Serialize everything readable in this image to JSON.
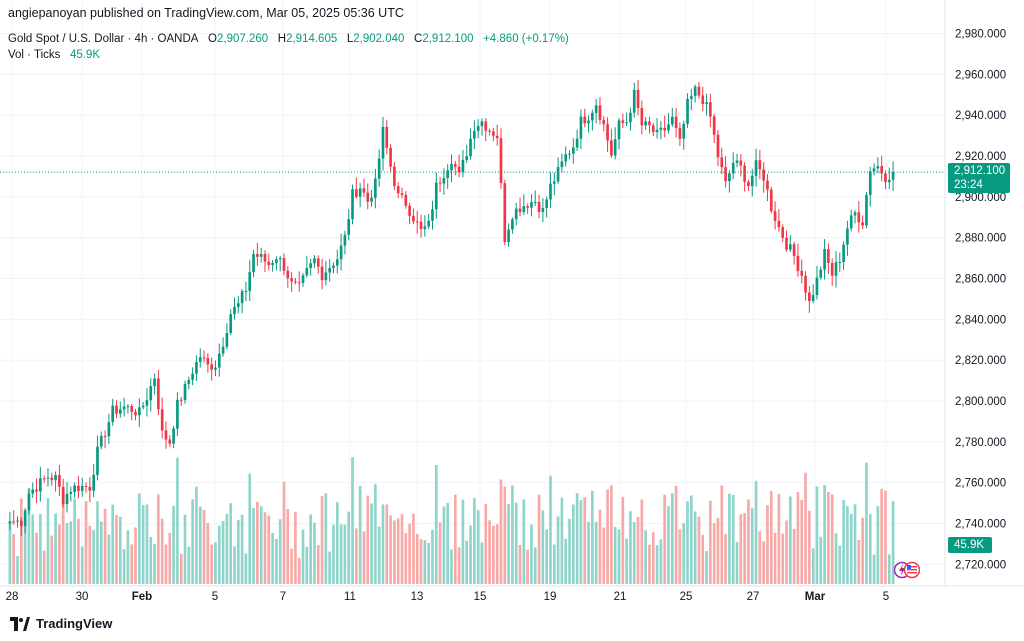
{
  "publisher_line": "angiepanoyan published on TradingView.com, Mar 05, 2025 05:36 UTC",
  "symbol": {
    "name": "Gold Spot / U.S. Dollar · 4h · OANDA",
    "open_label": "O",
    "open": "2,907.260",
    "high_label": "H",
    "high": "2,914.605",
    "low_label": "L",
    "low": "2,902.040",
    "close_label": "C",
    "close": "2,912.100",
    "change": "+4.860 (+0.17%)"
  },
  "volume": {
    "label": "Vol · Ticks",
    "value": "45.9K"
  },
  "current_price": {
    "price": "2,912.100",
    "countdown": "23:24"
  },
  "footer": {
    "brand": "TradingView"
  },
  "colors": {
    "up": "#089981",
    "down": "#f23645",
    "vol_up": "#8fd4ca",
    "vol_down": "#f7a9a7",
    "grid": "#f0f3fa",
    "text": "#131722"
  },
  "chart_data": {
    "type": "candlestick",
    "title": "Gold Spot / U.S. Dollar · 4h · OANDA",
    "ylim": [
      2712,
      2990
    ],
    "y_ticks": [
      "2,720.000",
      "2,740.000",
      "2,760.000",
      "2,780.000",
      "2,800.000",
      "2,820.000",
      "2,840.000",
      "2,860.000",
      "2,880.000",
      "2,900.000",
      "2,920.000",
      "2,940.000",
      "2,960.000",
      "2,980.000"
    ],
    "x_ticks": [
      "28",
      "30",
      "Feb",
      "5",
      "7",
      "11",
      "13",
      "15",
      "19",
      "21",
      "25",
      "27",
      "Mar",
      "5"
    ],
    "anchors": [
      [
        0,
        2741
      ],
      [
        3,
        2741
      ],
      [
        5,
        2755
      ],
      [
        10,
        2763
      ],
      [
        12,
        2762
      ],
      [
        14,
        2752
      ],
      [
        16,
        2757
      ],
      [
        18,
        2758
      ],
      [
        21,
        2758
      ],
      [
        23,
        2775
      ],
      [
        25,
        2785
      ],
      [
        27,
        2795
      ],
      [
        30,
        2797
      ],
      [
        32,
        2796
      ],
      [
        34,
        2794
      ],
      [
        36,
        2802
      ],
      [
        38,
        2812
      ],
      [
        40,
        2784
      ],
      [
        42,
        2780
      ],
      [
        44,
        2798
      ],
      [
        46,
        2806
      ],
      [
        48,
        2815
      ],
      [
        50,
        2822
      ],
      [
        52,
        2817
      ],
      [
        54,
        2818
      ],
      [
        56,
        2829
      ],
      [
        58,
        2843
      ],
      [
        60,
        2847
      ],
      [
        62,
        2855
      ],
      [
        64,
        2872
      ],
      [
        66,
        2870
      ],
      [
        68,
        2867
      ],
      [
        70,
        2871
      ],
      [
        72,
        2866
      ],
      [
        74,
        2857
      ],
      [
        76,
        2855
      ],
      [
        78,
        2863
      ],
      [
        80,
        2869
      ],
      [
        82,
        2862
      ],
      [
        84,
        2866
      ],
      [
        86,
        2870
      ],
      [
        88,
        2880
      ],
      [
        90,
        2901
      ],
      [
        92,
        2905
      ],
      [
        94,
        2898
      ],
      [
        96,
        2906
      ],
      [
        98,
        2932
      ],
      [
        100,
        2915
      ],
      [
        102,
        2900
      ],
      [
        104,
        2897
      ],
      [
        106,
        2890
      ],
      [
        108,
        2883
      ],
      [
        110,
        2886
      ],
      [
        112,
        2905
      ],
      [
        114,
        2912
      ],
      [
        116,
        2919
      ],
      [
        118,
        2910
      ],
      [
        120,
        2922
      ],
      [
        122,
        2935
      ],
      [
        124,
        2937
      ],
      [
        126,
        2933
      ],
      [
        128,
        2930
      ],
      [
        130,
        2880
      ],
      [
        132,
        2892
      ],
      [
        134,
        2895
      ],
      [
        136,
        2897
      ],
      [
        138,
        2898
      ],
      [
        140,
        2893
      ],
      [
        142,
        2905
      ],
      [
        144,
        2912
      ],
      [
        146,
        2920
      ],
      [
        148,
        2925
      ],
      [
        150,
        2937
      ],
      [
        152,
        2940
      ],
      [
        154,
        2946
      ],
      [
        156,
        2935
      ],
      [
        158,
        2921
      ],
      [
        160,
        2935
      ],
      [
        162,
        2937
      ],
      [
        164,
        2950
      ],
      [
        166,
        2935
      ],
      [
        168,
        2934
      ],
      [
        170,
        2930
      ],
      [
        172,
        2933
      ],
      [
        174,
        2938
      ],
      [
        176,
        2926
      ],
      [
        178,
        2945
      ],
      [
        180,
        2952
      ],
      [
        182,
        2948
      ],
      [
        184,
        2939
      ],
      [
        186,
        2920
      ],
      [
        188,
        2906
      ],
      [
        190,
        2917
      ],
      [
        192,
        2914
      ],
      [
        194,
        2906
      ],
      [
        196,
        2915
      ],
      [
        198,
        2910
      ],
      [
        200,
        2895
      ],
      [
        202,
        2885
      ],
      [
        204,
        2877
      ],
      [
        206,
        2871
      ],
      [
        208,
        2862
      ],
      [
        210,
        2848
      ],
      [
        212,
        2859
      ],
      [
        214,
        2872
      ],
      [
        216,
        2862
      ],
      [
        218,
        2870
      ],
      [
        220,
        2885
      ],
      [
        222,
        2892
      ],
      [
        224,
        2888
      ],
      [
        226,
        2914
      ],
      [
        228,
        2915
      ],
      [
        230,
        2910
      ],
      [
        232,
        2912
      ]
    ],
    "volume_ylim": [
      0,
      70
    ],
    "series": [
      {
        "name": "Gold Spot / U.S. Dollar",
        "kind": "ohlc",
        "last_close": 2912.1
      },
      {
        "name": "Vol · Ticks",
        "kind": "volume",
        "last_value": "45.9K"
      }
    ]
  }
}
